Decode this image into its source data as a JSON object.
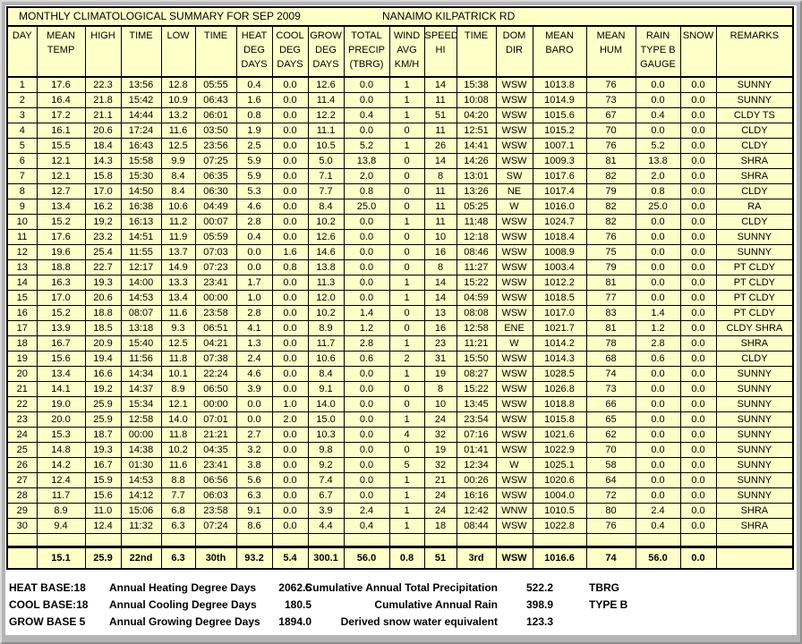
{
  "window": {
    "title_left": "MONTHLY CLIMATOLOGICAL SUMMARY FOR SEP 2009",
    "title_right": "NANAIMO KILPATRICK RD"
  },
  "colors": {
    "panel_yellow": "#ffffc8",
    "frame_gray": "#b4b4b4",
    "border_black": "#000000",
    "background_white": "#ffffff"
  },
  "table": {
    "headers": [
      "DAY",
      "MEAN\nTEMP",
      "HIGH",
      "TIME",
      "LOW",
      "TIME",
      "HEAT\nDEG\nDAYS",
      "COOL\nDEG\nDAYS",
      "GROW\nDEG\nDAYS",
      "TOTAL\nPRECIP\n(TBRG)",
      "WIND\nAVG\nKM/H",
      "SPEED\nHI",
      "TIME",
      "DOM\nDIR",
      "MEAN\nBARO",
      "MEAN\nHUM",
      "RAIN\nTYPE B\nGAUGE",
      "SNOW",
      "REMARKS"
    ],
    "rows": [
      [
        "1",
        "17.6",
        "22.3",
        "13:56",
        "12.8",
        "05:55",
        "0.4",
        "0.0",
        "12.6",
        "0.0",
        "1",
        "14",
        "15:38",
        "WSW",
        "1013.8",
        "76",
        "0.0",
        "0.0",
        "SUNNY"
      ],
      [
        "2",
        "16.4",
        "21.8",
        "15:42",
        "10.9",
        "06:43",
        "1.6",
        "0.0",
        "11.4",
        "0.0",
        "1",
        "11",
        "10:08",
        "WSW",
        "1014.9",
        "73",
        "0.0",
        "0.0",
        "SUNNY"
      ],
      [
        "3",
        "17.2",
        "21.1",
        "14:44",
        "13.2",
        "06:01",
        "0.8",
        "0.0",
        "12.2",
        "0.4",
        "1",
        "51",
        "04:20",
        "WSW",
        "1015.6",
        "67",
        "0.4",
        "0.0",
        "CLDY TS"
      ],
      [
        "4",
        "16.1",
        "20.6",
        "17:24",
        "11.6",
        "03:50",
        "1.9",
        "0.0",
        "11.1",
        "0.0",
        "0",
        "11",
        "12:51",
        "WSW",
        "1015.2",
        "70",
        "0.0",
        "0.0",
        "CLDY"
      ],
      [
        "5",
        "15.5",
        "18.4",
        "16:43",
        "12.5",
        "23:56",
        "2.5",
        "0.0",
        "10.5",
        "5.2",
        "1",
        "26",
        "14:41",
        "WSW",
        "1007.1",
        "76",
        "5.2",
        "0.0",
        "CLDY"
      ],
      [
        "6",
        "12.1",
        "14.3",
        "15:58",
        "9.9",
        "07:25",
        "5.9",
        "0.0",
        "5.0",
        "13.8",
        "0",
        "14",
        "14:26",
        "WSW",
        "1009.3",
        "81",
        "13.8",
        "0.0",
        "SHRA"
      ],
      [
        "7",
        "12.1",
        "15.8",
        "15:30",
        "8.4",
        "06:35",
        "5.9",
        "0.0",
        "7.1",
        "2.0",
        "0",
        "8",
        "13:01",
        "SW",
        "1017.6",
        "82",
        "2.0",
        "0.0",
        "SHRA"
      ],
      [
        "8",
        "12.7",
        "17.0",
        "14:50",
        "8.4",
        "06:30",
        "5.3",
        "0.0",
        "7.7",
        "0.8",
        "0",
        "11",
        "13:26",
        "NE",
        "1017.4",
        "79",
        "0.8",
        "0.0",
        "CLDY"
      ],
      [
        "9",
        "13.4",
        "16.2",
        "16:38",
        "10.6",
        "04:49",
        "4.6",
        "0.0",
        "8.4",
        "25.0",
        "0",
        "11",
        "05:25",
        "W",
        "1016.0",
        "82",
        "25.0",
        "0.0",
        "RA"
      ],
      [
        "10",
        "15.2",
        "19.2",
        "16:13",
        "11.2",
        "00:07",
        "2.8",
        "0.0",
        "10.2",
        "0.0",
        "1",
        "11",
        "11:48",
        "WSW",
        "1024.7",
        "82",
        "0.0",
        "0.0",
        "CLDY"
      ],
      [
        "11",
        "17.6",
        "23.2",
        "14:51",
        "11.9",
        "05:59",
        "0.4",
        "0.0",
        "12.6",
        "0.0",
        "0",
        "10",
        "12:18",
        "WSW",
        "1018.4",
        "76",
        "0.0",
        "0.0",
        "SUNNY"
      ],
      [
        "12",
        "19.6",
        "25.4",
        "11:55",
        "13.7",
        "07:03",
        "0.0",
        "1.6",
        "14.6",
        "0.0",
        "0",
        "16",
        "08:46",
        "WSW",
        "1008.9",
        "75",
        "0.0",
        "0.0",
        "SUNNY"
      ],
      [
        "13",
        "18.8",
        "22.7",
        "12:17",
        "14.9",
        "07:23",
        "0.0",
        "0.8",
        "13.8",
        "0.0",
        "0",
        "8",
        "11:27",
        "WSW",
        "1003.4",
        "79",
        "0.0",
        "0.0",
        "PT CLDY"
      ],
      [
        "14",
        "16.3",
        "19.3",
        "14:00",
        "13.3",
        "23:41",
        "1.7",
        "0.0",
        "11.3",
        "0.0",
        "1",
        "14",
        "15:22",
        "WSW",
        "1012.2",
        "81",
        "0.0",
        "0.0",
        "PT CLDY"
      ],
      [
        "15",
        "17.0",
        "20.6",
        "14:53",
        "13.4",
        "00:00",
        "1.0",
        "0.0",
        "12.0",
        "0.0",
        "1",
        "14",
        "04:59",
        "WSW",
        "1018.5",
        "77",
        "0.0",
        "0.0",
        "PT CLDY"
      ],
      [
        "16",
        "15.2",
        "18.8",
        "08:07",
        "11.6",
        "23:58",
        "2.8",
        "0.0",
        "10.2",
        "1.4",
        "0",
        "13",
        "08:08",
        "WSW",
        "1017.0",
        "83",
        "1.4",
        "0.0",
        "PT CLDY"
      ],
      [
        "17",
        "13.9",
        "18.5",
        "13:18",
        "9.3",
        "06:51",
        "4.1",
        "0.0",
        "8.9",
        "1.2",
        "0",
        "16",
        "12:58",
        "ENE",
        "1021.7",
        "81",
        "1.2",
        "0.0",
        "CLDY SHRA"
      ],
      [
        "18",
        "16.7",
        "20.9",
        "15:40",
        "12.5",
        "04:21",
        "1.3",
        "0.0",
        "11.7",
        "2.8",
        "1",
        "23",
        "11:21",
        "W",
        "1014.2",
        "78",
        "2.8",
        "0.0",
        "SHRA"
      ],
      [
        "19",
        "15.6",
        "19.4",
        "11:56",
        "11.8",
        "07:38",
        "2.4",
        "0.0",
        "10.6",
        "0.6",
        "2",
        "31",
        "15:50",
        "WSW",
        "1014.3",
        "68",
        "0.6",
        "0.0",
        "CLDY"
      ],
      [
        "20",
        "13.4",
        "16.6",
        "14:34",
        "10.1",
        "22:24",
        "4.6",
        "0.0",
        "8.4",
        "0.0",
        "1",
        "19",
        "08:27",
        "WSW",
        "1028.5",
        "74",
        "0.0",
        "0.0",
        "SUNNY"
      ],
      [
        "21",
        "14.1",
        "19.2",
        "14:37",
        "8.9",
        "06:50",
        "3.9",
        "0.0",
        "9.1",
        "0.0",
        "0",
        "8",
        "15:22",
        "WSW",
        "1026.8",
        "73",
        "0.0",
        "0.0",
        "SUNNY"
      ],
      [
        "22",
        "19.0",
        "25.9",
        "15:34",
        "12.1",
        "00:00",
        "0.0",
        "1.0",
        "14.0",
        "0.0",
        "0",
        "10",
        "13:45",
        "WSW",
        "1018.8",
        "66",
        "0.0",
        "0.0",
        "SUNNY"
      ],
      [
        "23",
        "20.0",
        "25.9",
        "12:58",
        "14.0",
        "07:01",
        "0.0",
        "2.0",
        "15.0",
        "0.0",
        "1",
        "24",
        "23:54",
        "WSW",
        "1015.8",
        "65",
        "0.0",
        "0.0",
        "SUNNY"
      ],
      [
        "24",
        "15.3",
        "18.7",
        "00:00",
        "11.8",
        "21:21",
        "2.7",
        "0.0",
        "10.3",
        "0.0",
        "4",
        "32",
        "07:16",
        "WSW",
        "1021.6",
        "62",
        "0.0",
        "0.0",
        "SUNNY"
      ],
      [
        "25",
        "14.8",
        "19.3",
        "14:38",
        "10.2",
        "04:35",
        "3.2",
        "0.0",
        "9.8",
        "0.0",
        "0",
        "19",
        "01:41",
        "WSW",
        "1022.9",
        "70",
        "0.0",
        "0.0",
        "SUNNY"
      ],
      [
        "26",
        "14.2",
        "16.7",
        "01:30",
        "11.6",
        "23:41",
        "3.8",
        "0.0",
        "9.2",
        "0.0",
        "5",
        "32",
        "12:34",
        "W",
        "1025.1",
        "58",
        "0.0",
        "0.0",
        "SUNNY"
      ],
      [
        "27",
        "12.4",
        "15.9",
        "14:53",
        "8.8",
        "06:56",
        "5.6",
        "0.0",
        "7.4",
        "0.0",
        "1",
        "21",
        "00:26",
        "WSW",
        "1020.6",
        "64",
        "0.0",
        "0.0",
        "SUNNY"
      ],
      [
        "28",
        "11.7",
        "15.6",
        "14:12",
        "7.7",
        "06:03",
        "6.3",
        "0.0",
        "6.7",
        "0.0",
        "1",
        "24",
        "16:16",
        "WSW",
        "1004.0",
        "72",
        "0.0",
        "0.0",
        "SUNNY"
      ],
      [
        "29",
        "8.9",
        "11.0",
        "15:06",
        "6.8",
        "23:58",
        "9.1",
        "0.0",
        "3.9",
        "2.4",
        "1",
        "24",
        "12:42",
        "WNW",
        "1010.5",
        "80",
        "2.4",
        "0.0",
        "SHRA"
      ],
      [
        "30",
        "9.4",
        "12.4",
        "11:32",
        "6.3",
        "07:24",
        "8.6",
        "0.0",
        "4.4",
        "0.4",
        "1",
        "18",
        "08:44",
        "WSW",
        "1022.8",
        "76",
        "0.4",
        "0.0",
        "SHRA"
      ]
    ],
    "summary": [
      "",
      "15.1",
      "25.9",
      "22nd",
      "6.3",
      "30th",
      "93.2",
      "5.4",
      "300.1",
      "56.0",
      "0.8",
      "51",
      "3rd",
      "WSW",
      "1016.6",
      "74",
      "56.0",
      "0.0",
      ""
    ]
  },
  "footer": {
    "rows": [
      {
        "label": "HEAT BASE:18",
        "desc": "Annual Heating Degree Days",
        "value": "2062.5",
        "desc2": "Cumulative Annual Total Precipitation",
        "value2": "522.2",
        "tag": "TBRG"
      },
      {
        "label": "COOL BASE:18",
        "desc": "Annual Cooling Degree Days",
        "value": "180.5",
        "desc2": "Cumulative Annual Rain",
        "value2": "398.9",
        "tag": "TYPE B"
      },
      {
        "label": "GROW BASE 5",
        "desc": "Annual Growing Degree Days",
        "value": "1894.0",
        "desc2": "Derived snow water equivalent",
        "value2": "123.3",
        "tag": ""
      }
    ]
  }
}
